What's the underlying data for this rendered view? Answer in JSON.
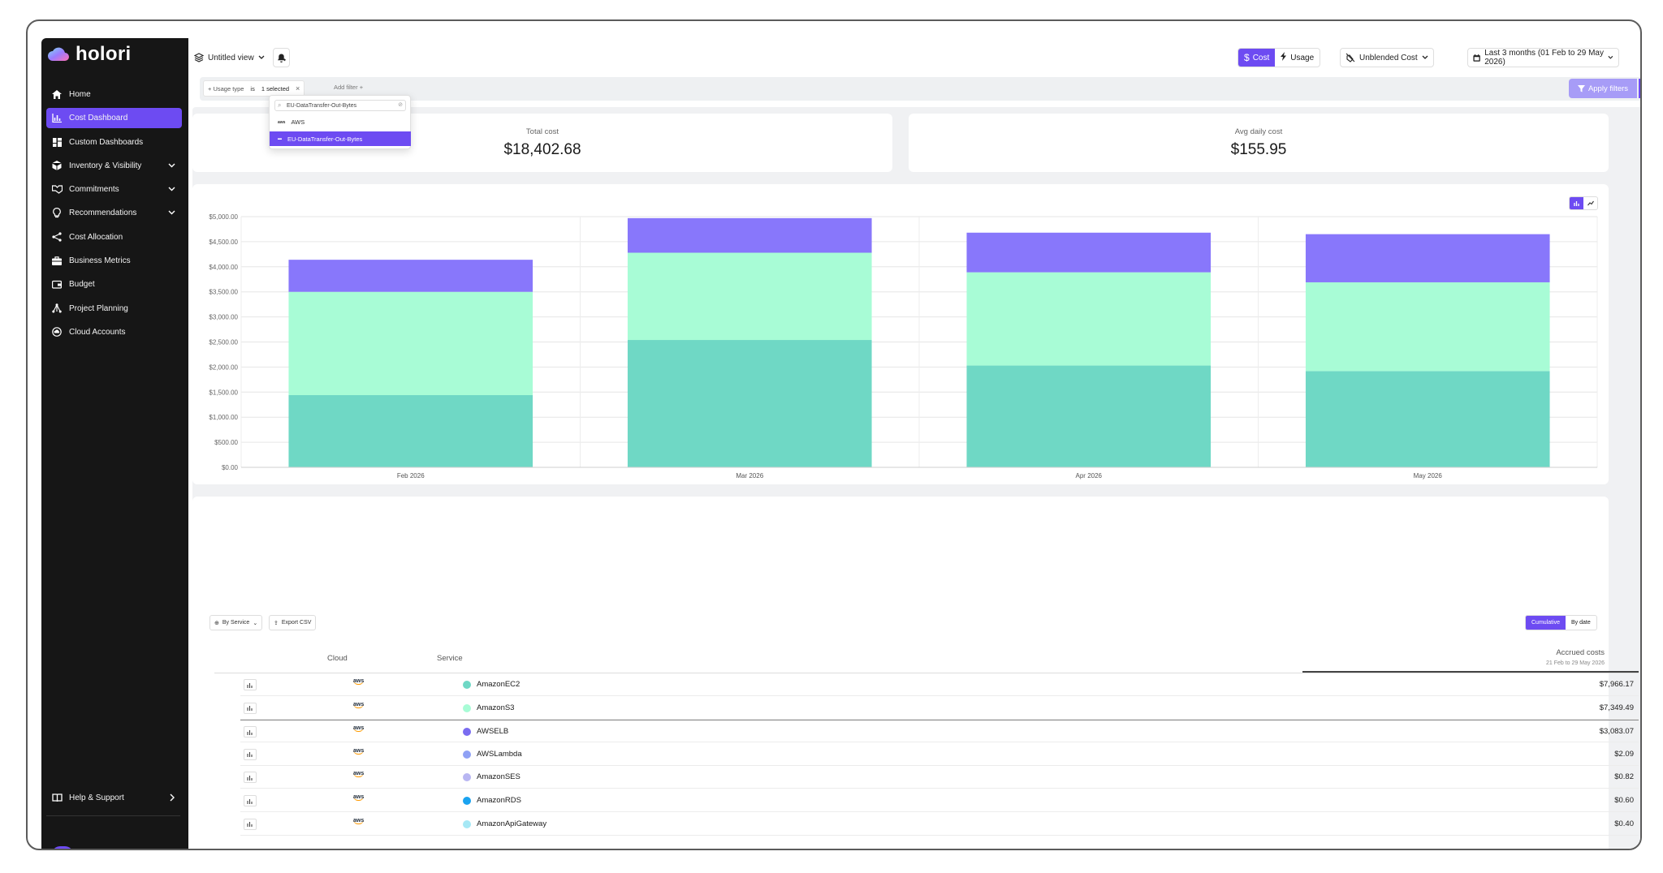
{
  "sidebar": {
    "logo": "holori",
    "items": [
      {
        "label": "Home",
        "icon": "home-icon",
        "active": false,
        "expandable": false
      },
      {
        "label": "Cost Dashboard",
        "icon": "bar-chart-icon",
        "active": true,
        "expandable": false
      },
      {
        "label": "Custom Dashboards",
        "icon": "grid-icon",
        "active": false,
        "expandable": false
      },
      {
        "label": "Inventory & Visibility",
        "icon": "cube-icon",
        "active": false,
        "expandable": true
      },
      {
        "label": "Commitments",
        "icon": "handshake-icon",
        "active": false,
        "expandable": true
      },
      {
        "label": "Recommendations",
        "icon": "lightbulb-icon",
        "active": false,
        "expandable": true
      },
      {
        "label": "Cost Allocation",
        "icon": "share-icon",
        "active": false,
        "expandable": false
      },
      {
        "label": "Business Metrics",
        "icon": "briefcase-icon",
        "active": false,
        "expandable": false
      },
      {
        "label": "Budget",
        "icon": "wallet-icon",
        "active": false,
        "expandable": false
      },
      {
        "label": "Project Planning",
        "icon": "network-icon",
        "active": false,
        "expandable": false
      },
      {
        "label": "Cloud Accounts",
        "icon": "cloud-circle-icon",
        "active": false,
        "expandable": false
      }
    ],
    "help": "Help & Support"
  },
  "toolbar": {
    "view_name": "Untitled view",
    "cost_label": "Cost",
    "usage_label": "Usage",
    "cost_type": "Unblended Cost",
    "date_range": "Last 3 months (01 Feb to 29 May 2026)"
  },
  "filter": {
    "field": "Usage type",
    "operator": "is",
    "value": "1 selected",
    "add_filter": "Add filter",
    "apply_label": "Apply filters"
  },
  "dropdown": {
    "search_value": "EU-DataTransfer-Out-Bytes",
    "group": "AWS",
    "option": "EU-DataTransfer-Out-Bytes",
    "group_logo": "aws"
  },
  "stats": {
    "total_label": "Total cost",
    "total_value": "$18,402.68",
    "avg_label": "Avg daily cost",
    "avg_value": "$155.95"
  },
  "chart_data": {
    "type": "bar",
    "stacked": true,
    "categories": [
      "Feb 2026",
      "Mar 2026",
      "Apr 2026",
      "May 2026"
    ],
    "series": [
      {
        "color": "#6fd8c5",
        "values": [
          1440,
          2540,
          2030,
          1920
        ]
      },
      {
        "color": "#a8fcd6",
        "values": [
          2060,
          1740,
          1860,
          1770
        ]
      },
      {
        "color": "#8877fb",
        "values": [
          640,
          690,
          790,
          960
        ]
      }
    ],
    "ylim": [
      0,
      5000
    ],
    "yticks": [
      "$0.00",
      "$500.00",
      "$1,000.00",
      "$1,500.00",
      "$2,000.00",
      "$2,500.00",
      "$3,000.00",
      "$3,500.00",
      "$4,000.00",
      "$4,500.00",
      "$5,000.00"
    ],
    "grid": true
  },
  "table": {
    "group_by": "By Service",
    "export": "Export CSV",
    "cumulative": "Cumulative",
    "by_date": "By date",
    "col_cloud": "Cloud",
    "col_service": "Service",
    "col_accrued": "Accrued costs",
    "col_accrued_sub": "21 Feb to 29 May 2026",
    "rows": [
      {
        "cloud": "aws",
        "service": "AmazonEC2",
        "color": "#6fd8c5",
        "amount": "$7,966.17"
      },
      {
        "cloud": "aws",
        "service": "AmazonS3",
        "color": "#a8fcd6",
        "amount": "$7,349.49"
      },
      {
        "cloud": "aws",
        "service": "AWSELB",
        "color": "#7a6cf0",
        "amount": "$3,083.07"
      },
      {
        "cloud": "aws",
        "service": "AWSLambda",
        "color": "#8fa1f5",
        "amount": "$2.09"
      },
      {
        "cloud": "aws",
        "service": "AmazonSES",
        "color": "#b8b6f2",
        "amount": "$0.82"
      },
      {
        "cloud": "aws",
        "service": "AmazonRDS",
        "color": "#1aa3f0",
        "amount": "$0.60"
      },
      {
        "cloud": "aws",
        "service": "AmazonApiGateway",
        "color": "#a6e8f5",
        "amount": "$0.40"
      }
    ]
  }
}
